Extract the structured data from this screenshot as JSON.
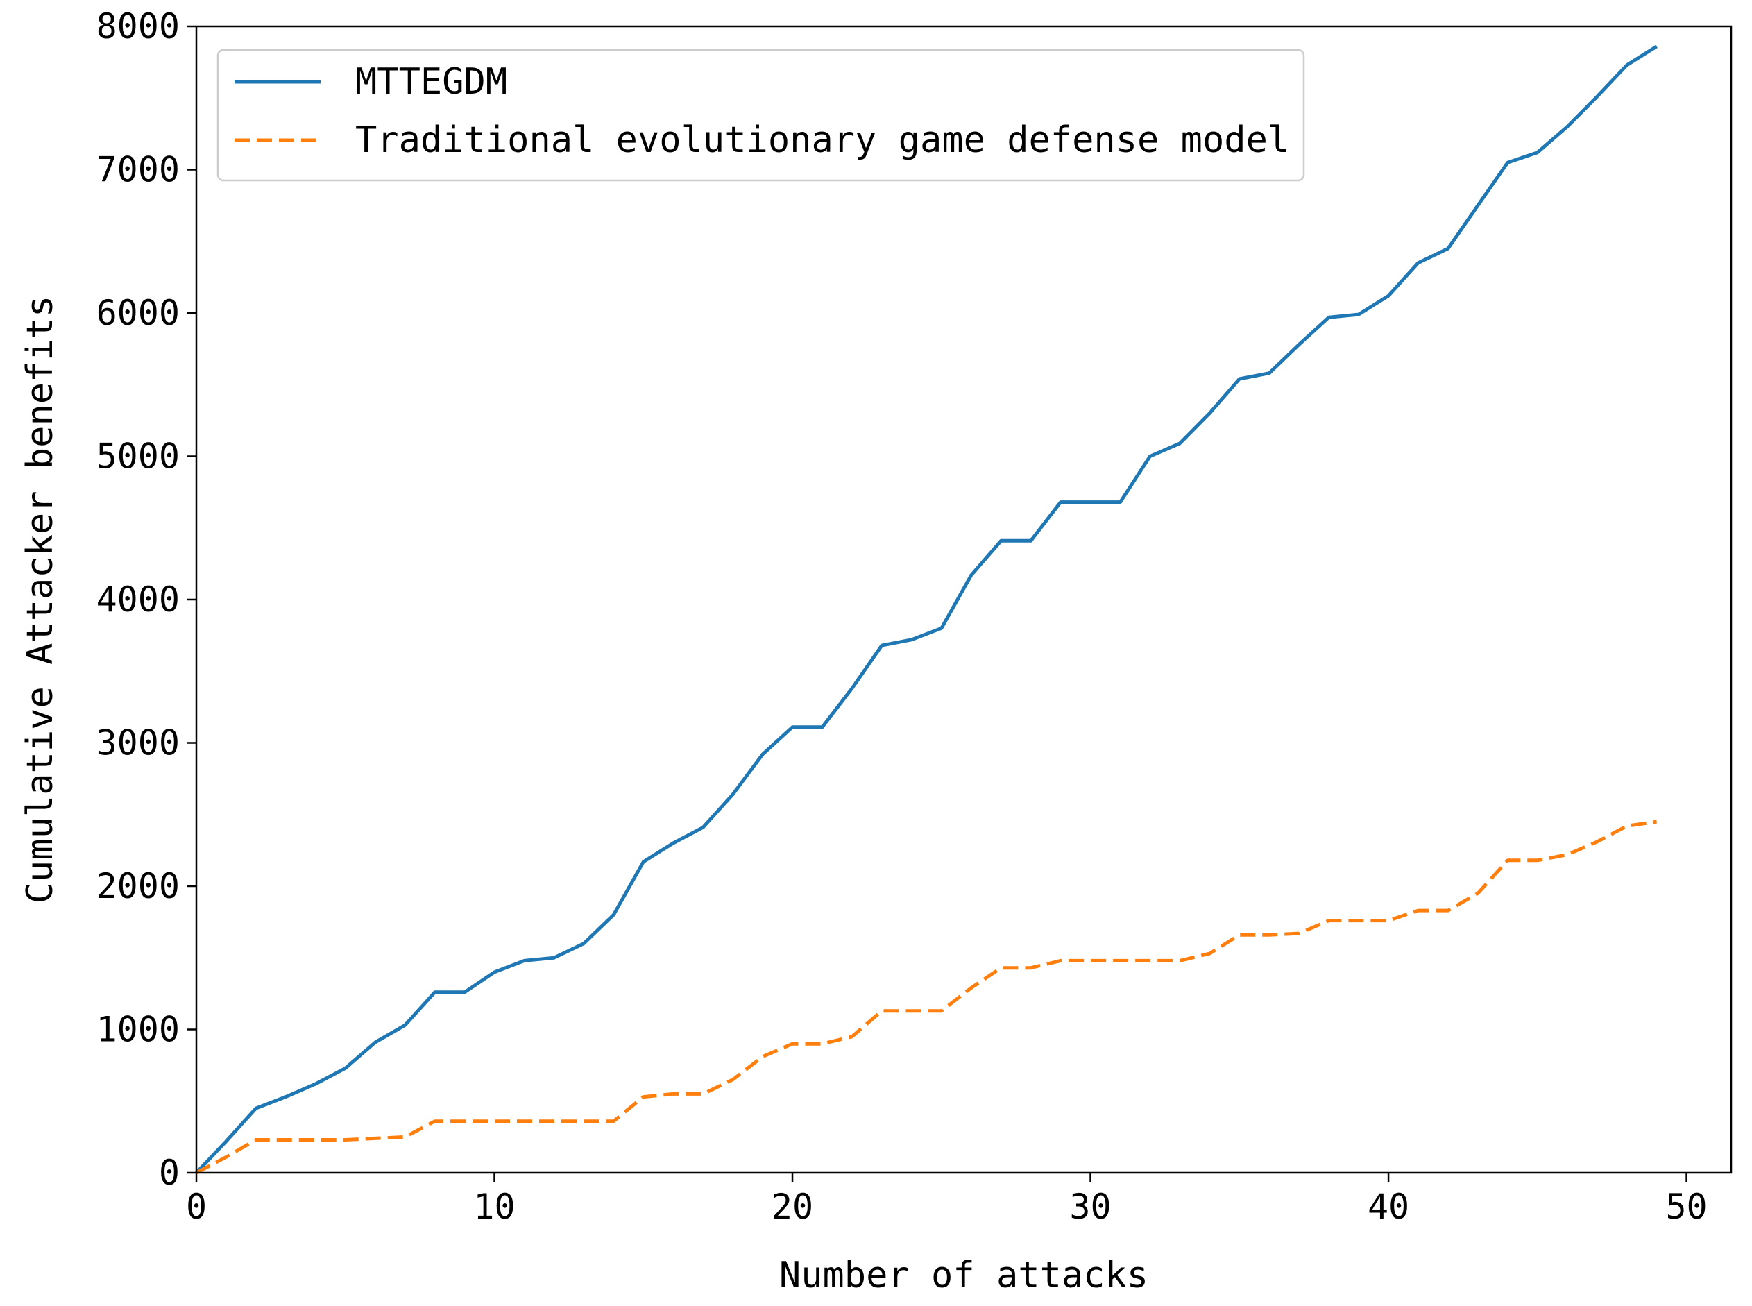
{
  "chart_data": {
    "type": "line",
    "title": "",
    "xlabel": "Number of attacks",
    "ylabel": "Cumulative Attacker benefits",
    "xlim": [
      0,
      51.5
    ],
    "ylim": [
      0,
      8000
    ],
    "xticks": [
      0,
      10,
      20,
      30,
      40,
      50
    ],
    "yticks": [
      0,
      1000,
      2000,
      3000,
      4000,
      5000,
      6000,
      7000,
      8000
    ],
    "grid": false,
    "legend_position": "top-left",
    "x": [
      0,
      1,
      2,
      3,
      4,
      5,
      6,
      7,
      8,
      9,
      10,
      11,
      12,
      13,
      14,
      15,
      16,
      17,
      18,
      19,
      20,
      21,
      22,
      23,
      24,
      25,
      26,
      27,
      28,
      29,
      30,
      31,
      32,
      33,
      34,
      35,
      36,
      37,
      38,
      39,
      40,
      41,
      42,
      43,
      44,
      45,
      46,
      47,
      48,
      49
    ],
    "series": [
      {
        "name": "MTTEGDM",
        "color": "#1f77b4",
        "style": "solid",
        "values": [
          0,
          220,
          450,
          530,
          620,
          730,
          910,
          1030,
          1260,
          1260,
          1400,
          1480,
          1500,
          1600,
          1800,
          2170,
          2300,
          2410,
          2640,
          2920,
          3110,
          3110,
          3380,
          3680,
          3720,
          3800,
          4170,
          4410,
          4410,
          4680,
          4680,
          4680,
          5000,
          5090,
          5300,
          5540,
          5580,
          5780,
          5970,
          5990,
          6120,
          6350,
          6450,
          6750,
          7050,
          7120,
          7300,
          7510,
          7730,
          7860
        ]
      },
      {
        "name": "Traditional evolutionary game defense model",
        "color": "#ff7f0e",
        "style": "dashed",
        "values": [
          0,
          110,
          230,
          230,
          230,
          230,
          240,
          250,
          360,
          360,
          360,
          360,
          360,
          360,
          360,
          530,
          550,
          550,
          650,
          810,
          900,
          900,
          950,
          1130,
          1130,
          1130,
          1290,
          1430,
          1430,
          1480,
          1480,
          1480,
          1480,
          1480,
          1530,
          1660,
          1660,
          1670,
          1760,
          1760,
          1760,
          1830,
          1830,
          1950,
          2180,
          2180,
          2220,
          2310,
          2420,
          2450
        ]
      }
    ]
  }
}
